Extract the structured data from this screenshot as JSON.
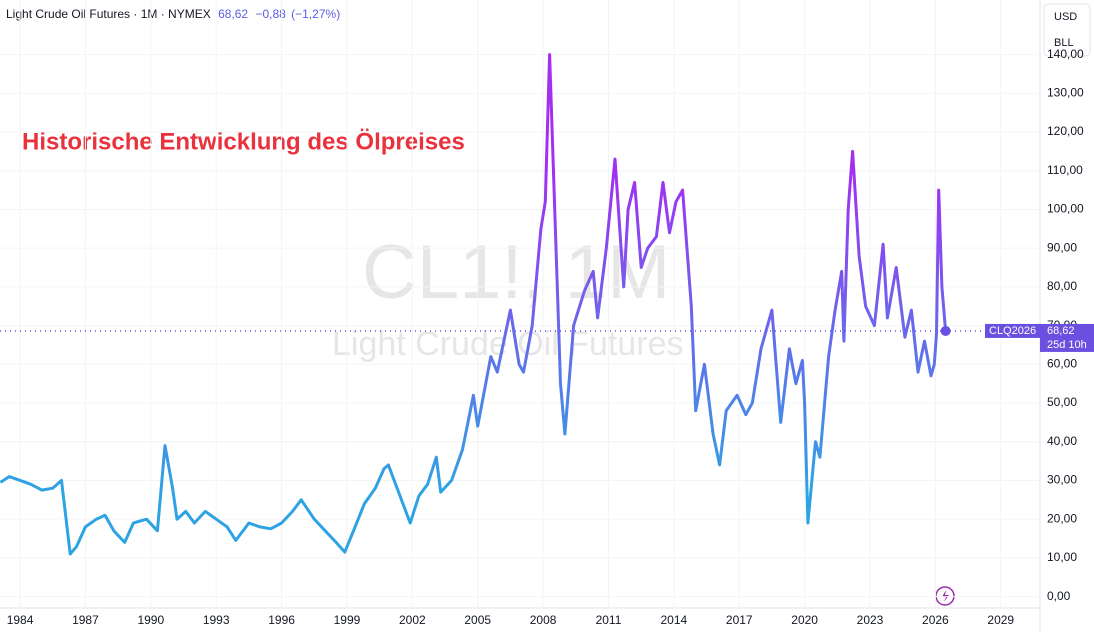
{
  "header": {
    "title": "Light Crude Oil Futures · 1M · NYMEX",
    "price": "68,62",
    "change": "−0,88",
    "change_pct": "(−1,27%)"
  },
  "buttons": [
    "USD",
    "BLL"
  ],
  "watermark": {
    "symbol": "CL1!, 1M",
    "name": "Light Crude Oil Futures"
  },
  "chart_data": {
    "type": "line",
    "annotation": "Historische Entwicklung des Ölpreises",
    "line_colors": [
      "#2ea3e3",
      "#a22ff2"
    ],
    "x": [
      1983.1,
      1983.5,
      1984.0,
      1984.5,
      1985.0,
      1985.5,
      1985.9,
      1986.3,
      1986.6,
      1987.0,
      1987.5,
      1987.9,
      1988.3,
      1988.8,
      1989.2,
      1989.8,
      1990.3,
      1990.65,
      1991.0,
      1991.2,
      1991.6,
      1992.0,
      1992.5,
      1993.0,
      1993.5,
      1993.9,
      1994.5,
      1995.0,
      1995.5,
      1996.0,
      1996.5,
      1996.9,
      1997.5,
      1998.0,
      1998.5,
      1998.9,
      1999.3,
      1999.8,
      2000.3,
      2000.7,
      2000.9,
      2001.3,
      2001.9,
      2002.3,
      2002.7,
      2003.1,
      2003.3,
      2003.8,
      2004.3,
      2004.8,
      2005.0,
      2005.6,
      2005.9,
      2006.5,
      2006.9,
      2007.1,
      2007.5,
      2007.9,
      2008.1,
      2008.3,
      2008.8,
      2009.0,
      2009.4,
      2009.9,
      2010.3,
      2010.5,
      2010.9,
      2011.3,
      2011.7,
      2011.9,
      2012.2,
      2012.5,
      2012.8,
      2013.2,
      2013.5,
      2013.8,
      2014.1,
      2014.4,
      2014.8,
      2015.0,
      2015.4,
      2015.8,
      2016.1,
      2016.4,
      2016.9,
      2017.3,
      2017.6,
      2018.0,
      2018.5,
      2018.9,
      2019.3,
      2019.6,
      2019.9,
      2020.0,
      2020.15,
      2020.5,
      2020.7,
      2021.1,
      2021.4,
      2021.7,
      2021.8,
      2022.0,
      2022.2,
      2022.5,
      2022.8,
      2023.2,
      2023.6,
      2023.8,
      2024.2,
      2024.6,
      2024.9,
      2025.2,
      2025.5,
      2025.8,
      2025.95,
      2026.05,
      2026.15,
      2026.3,
      2026.47
    ],
    "values": [
      29.5,
      31,
      30,
      29,
      27.5,
      28,
      30,
      11,
      13,
      18,
      20,
      21,
      17,
      14,
      19,
      20,
      17,
      39,
      28,
      20,
      22,
      19,
      22,
      20,
      18,
      14.5,
      19,
      18,
      17.5,
      19,
      22,
      25,
      20,
      17,
      14,
      11.5,
      17,
      24,
      28,
      33,
      34,
      28,
      19,
      26,
      29,
      36,
      27,
      30,
      38,
      52,
      44,
      62,
      58,
      74,
      60,
      58,
      70,
      95,
      102,
      140,
      55,
      42,
      70,
      79,
      84,
      72,
      90,
      113,
      80,
      100,
      107,
      85,
      90,
      93,
      107,
      94,
      102,
      105,
      75,
      48,
      60,
      42,
      34,
      48,
      52,
      47,
      50,
      64,
      74,
      45,
      64,
      55,
      61,
      50,
      19,
      40,
      36,
      62,
      74,
      84,
      66,
      100,
      115,
      88,
      75,
      70,
      91,
      72,
      85,
      67,
      74,
      58,
      66,
      57,
      60,
      68,
      105,
      80,
      68.62
    ],
    "xlim": [
      1983.08,
      2030.8
    ],
    "xticks": [
      1984,
      1987,
      1990,
      1993,
      1996,
      1999,
      2002,
      2005,
      2008,
      2011,
      2014,
      2017,
      2020,
      2023,
      2026,
      2029
    ],
    "ylim": [
      -4.5,
      143
    ],
    "yticks": [
      {
        "value": 0,
        "label": "0,00"
      },
      {
        "value": 10,
        "label": "10,00"
      },
      {
        "value": 20,
        "label": "20,00"
      },
      {
        "value": 30,
        "label": "30,00"
      },
      {
        "value": 40,
        "label": "40,00"
      },
      {
        "value": 50,
        "label": "50,00"
      },
      {
        "value": 60,
        "label": "60,00"
      },
      {
        "value": 70,
        "label": "70,00"
      },
      {
        "value": 80,
        "label": "80,00"
      },
      {
        "value": 90,
        "label": "90,00"
      },
      {
        "value": 100,
        "label": "100,00"
      },
      {
        "value": 110,
        "label": "110,00"
      },
      {
        "value": 120,
        "label": "120,00"
      },
      {
        "value": 130,
        "label": "130,00"
      },
      {
        "value": 140,
        "label": "140,00"
      }
    ],
    "last": {
      "value": 68.62,
      "label": "68,62"
    },
    "last_symbol": "CLQ2026",
    "countdown": "25d 10h",
    "grid": true
  }
}
